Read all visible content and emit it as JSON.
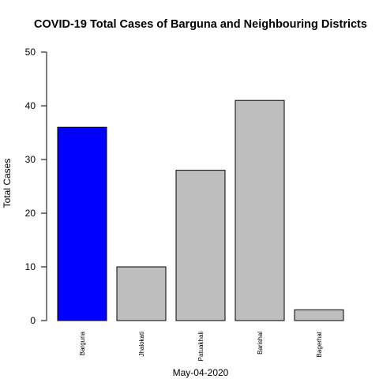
{
  "chart_data": {
    "type": "bar",
    "title": "COVID-19 Total Cases of Barguna and Neighbouring Districts",
    "xlabel": "May-04-2020",
    "ylabel": "Total Cases",
    "categories": [
      "Barguna",
      "Jhalokati",
      "Patuakhali",
      "Barishal",
      "Bagerhat"
    ],
    "values": [
      36,
      10,
      28,
      41,
      2
    ],
    "colors": [
      "#0000ff",
      "#bebebe",
      "#bebebe",
      "#bebebe",
      "#bebebe"
    ],
    "highlight_color": "#0000ff",
    "default_color": "#bebebe",
    "ylim": [
      0,
      50
    ],
    "yticks": [
      0,
      10,
      20,
      30,
      40,
      50
    ],
    "grid": false,
    "legend": "none"
  }
}
